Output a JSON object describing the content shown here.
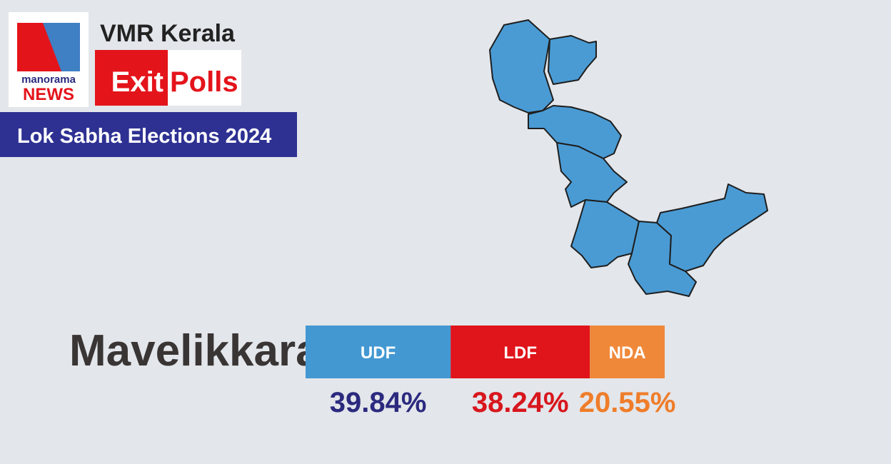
{
  "header": {
    "logo_top": "manorama",
    "logo_bottom": "NEWS",
    "source": "VMR Kerala",
    "badge_left": "Exit",
    "badge_right": "Polls",
    "banner": "Lok Sabha Elections 2024"
  },
  "chart_data": {
    "type": "stacked-bar",
    "title": "Mavelikkara",
    "series": [
      {
        "name": "UDF",
        "color": "#4398d2",
        "label_color": "#2b2a7f",
        "values": [
          39.84
        ],
        "value_labels": [
          "39.84%"
        ]
      },
      {
        "name": "LDF",
        "color": "#e0141b",
        "label_color": "#d8161d",
        "values": [
          38.24
        ],
        "value_labels": [
          "38.24%"
        ]
      },
      {
        "name": "NDA",
        "color": "#f0883a",
        "label_color": "#ef7d2a",
        "values": [
          20.55
        ],
        "value_labels": [
          "20.55%"
        ]
      }
    ]
  }
}
